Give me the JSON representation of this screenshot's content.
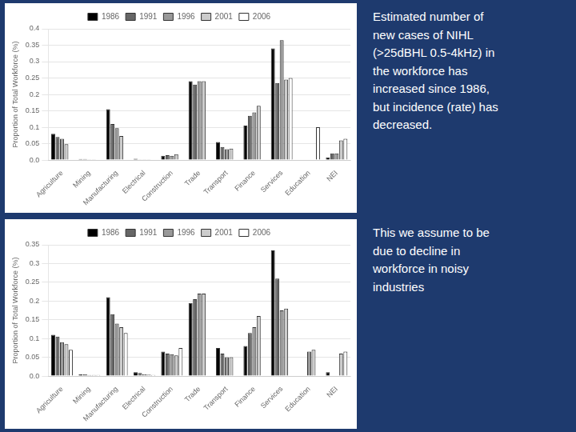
{
  "chart_data": [
    {
      "type": "bar",
      "ylabel": "Proportion of Total Workforce (%)",
      "categories": [
        "Agriculture",
        "Mining",
        "Manufacturing",
        "Electrical",
        "Construction",
        "Trade",
        "Transport",
        "Finance",
        "Services",
        "Education",
        "NEI"
      ],
      "series": [
        {
          "name": "1986",
          "color": "#000000",
          "values": [
            0.08,
            0.003,
            0.155,
            0.004,
            0.013,
            0.24,
            0.055,
            0.105,
            0.34,
            0.0,
            0.008
          ]
        },
        {
          "name": "1991",
          "color": "#666666",
          "values": [
            0.07,
            0.003,
            0.11,
            0.002,
            0.015,
            0.23,
            0.04,
            0.135,
            0.235,
            0.0,
            0.02
          ]
        },
        {
          "name": "1996",
          "color": "#999999",
          "values": [
            0.065,
            0.002,
            0.097,
            0.001,
            0.013,
            0.24,
            0.033,
            0.145,
            0.365,
            0.0,
            0.02
          ]
        },
        {
          "name": "2001",
          "color": "#cccccc",
          "values": [
            0.048,
            0.001,
            0.073,
            0.001,
            0.018,
            0.24,
            0.035,
            0.165,
            0.245,
            0.0,
            0.06
          ]
        },
        {
          "name": "2006",
          "color": "#ffffff",
          "values": [
            0.0,
            0.0,
            0.0,
            0.0,
            0.0,
            0.0,
            0.0,
            0.0,
            0.25,
            0.1,
            0.065
          ]
        }
      ],
      "ylim": [
        0,
        0.4
      ],
      "yticks": [
        {
          "value": 0,
          "label": "0.0"
        },
        0.05,
        0.1,
        0.15,
        0.2,
        0.25,
        0.3,
        0.35,
        0.4
      ],
      "grid": true,
      "legend": "top",
      "annotations": [
        "Estimated number of\nnew cases of NIHL\n(>25dBHL 0.5-4kHz) in\nthe workforce has\nincreased since 1986,\nbut incidence (rate) has\ndecreased."
      ]
    },
    {
      "type": "bar",
      "ylabel": "Proportion of Total Workforce (%)",
      "categories": [
        "Agriculture",
        "Mining",
        "Manufacturing",
        "Electrical",
        "Construction",
        "Trade",
        "Transport",
        "Finance",
        "Services",
        "Education",
        "NEI"
      ],
      "series": [
        {
          "name": "1986",
          "color": "#000000",
          "values": [
            0.11,
            0.005,
            0.21,
            0.01,
            0.065,
            0.195,
            0.075,
            0.08,
            0.335,
            0.0,
            0.01
          ]
        },
        {
          "name": "1991",
          "color": "#666666",
          "values": [
            0.105,
            0.005,
            0.165,
            0.008,
            0.06,
            0.205,
            0.06,
            0.115,
            0.26,
            0.0,
            0.0
          ]
        },
        {
          "name": "1996",
          "color": "#999999",
          "values": [
            0.09,
            0.003,
            0.14,
            0.005,
            0.058,
            0.22,
            0.05,
            0.13,
            0.175,
            0.065,
            0.0
          ]
        },
        {
          "name": "2001",
          "color": "#cccccc",
          "values": [
            0.085,
            0.003,
            0.13,
            0.004,
            0.055,
            0.22,
            0.05,
            0.16,
            0.18,
            0.07,
            0.06
          ]
        },
        {
          "name": "2006",
          "color": "#ffffff",
          "values": [
            0.07,
            0.003,
            0.115,
            0.003,
            0.075,
            0.0,
            0.0,
            0.0,
            0.0,
            0.0,
            0.065
          ]
        }
      ],
      "ylim": [
        0,
        0.35
      ],
      "yticks": [
        {
          "value": 0,
          "label": "0.0"
        },
        0.05,
        0.1,
        0.15,
        0.2,
        0.25,
        0.3,
        0.35
      ],
      "grid": true,
      "legend": "top",
      "annotations": [
        "This we assume to be\ndue to decline in\nworkforce in noisy\nindustries"
      ]
    }
  ]
}
